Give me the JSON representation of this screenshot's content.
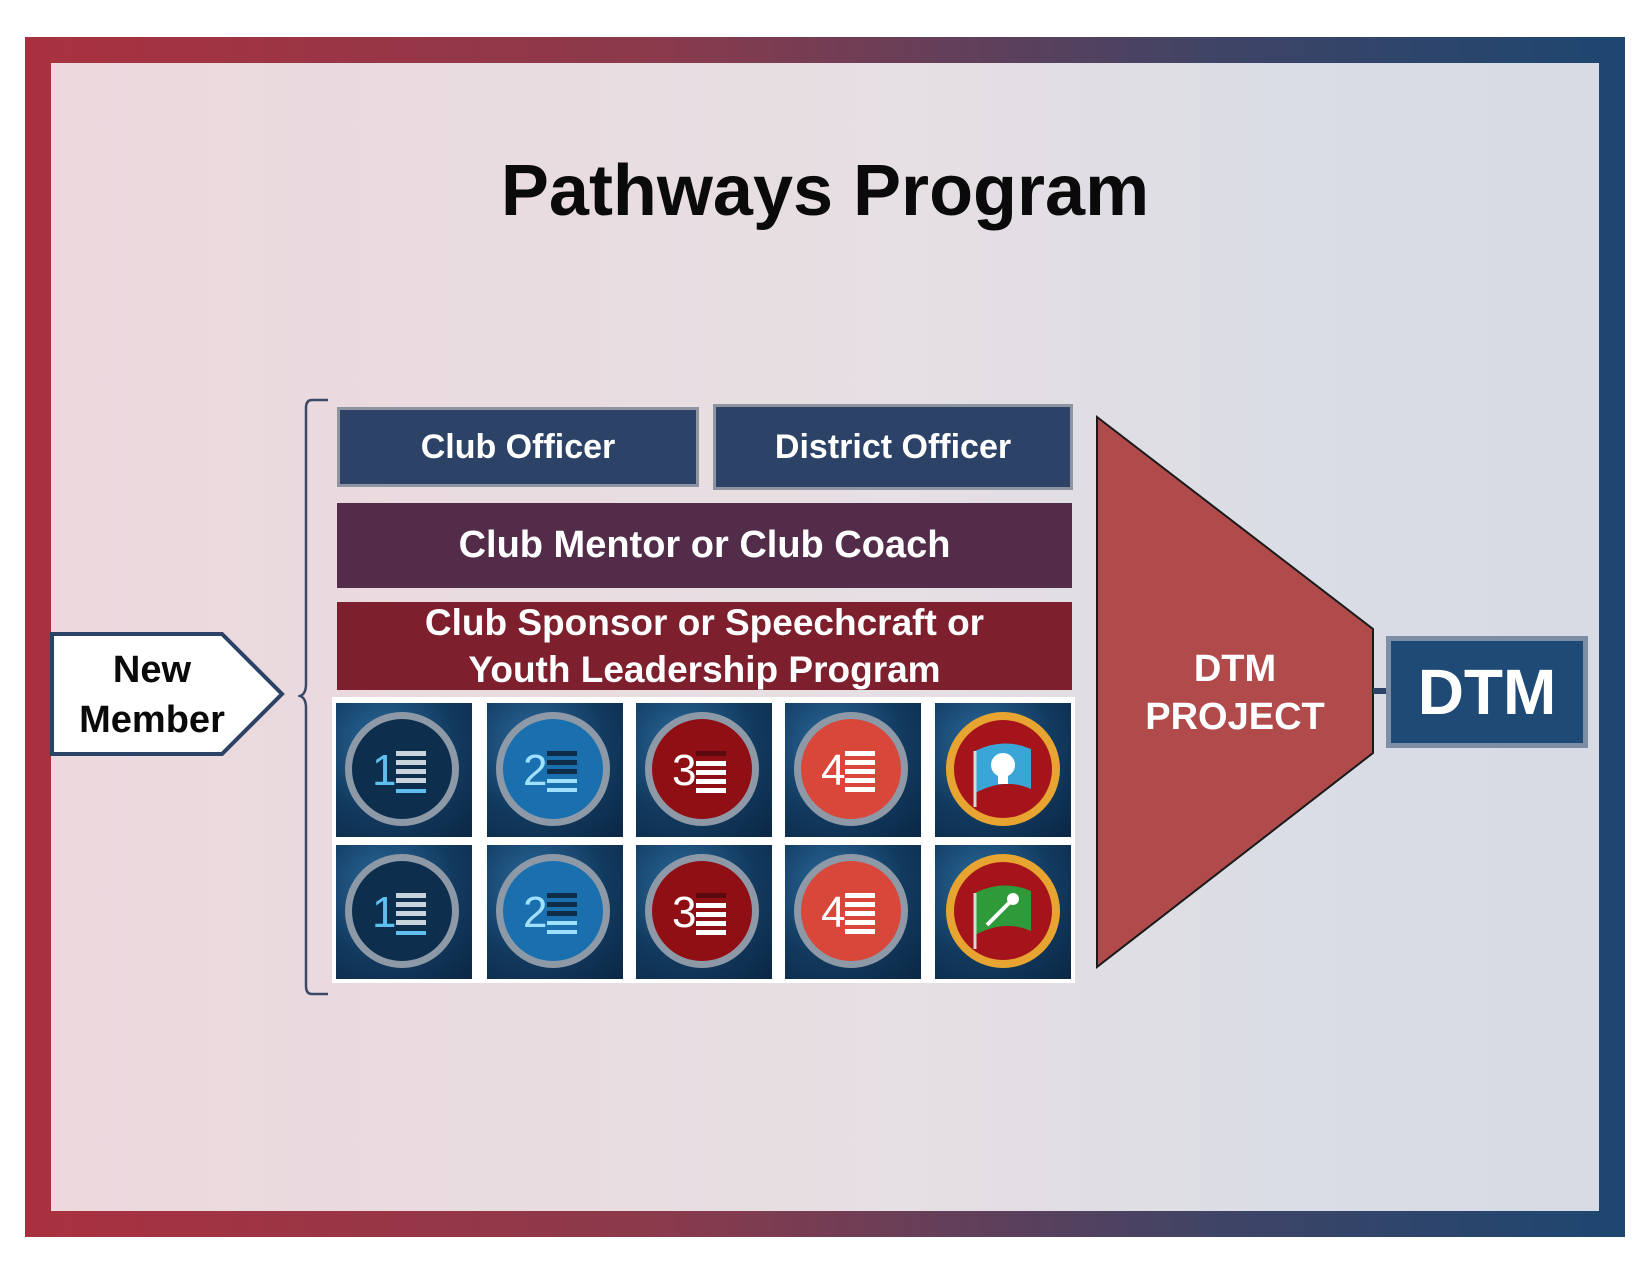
{
  "title": "Pathways Program",
  "new_member": {
    "line1": "New",
    "line2": "Member"
  },
  "roles": {
    "club_officer": "Club Officer",
    "district_officer": "District Officer",
    "mentor": "Club Mentor or Club Coach",
    "sponsor_line1": "Club Sponsor or Speechcraft or",
    "sponsor_line2": "Youth Leadership Program"
  },
  "badge_rows": [
    {
      "levels": [
        "1",
        "2",
        "3",
        "4"
      ],
      "final": "idea-flag-icon"
    },
    {
      "levels": [
        "1",
        "2",
        "3",
        "4"
      ],
      "final": "microphone-flag-icon"
    }
  ],
  "funnel": {
    "line1": "DTM",
    "line2": "PROJECT"
  },
  "goal": "DTM",
  "colors": {
    "officer_blue": "#2c4266",
    "mentor_purple": "#532c4a",
    "sponsor_red": "#7e1f2e",
    "funnel_red": "#b04a4b",
    "dtm_blue": "#1f4a76"
  }
}
